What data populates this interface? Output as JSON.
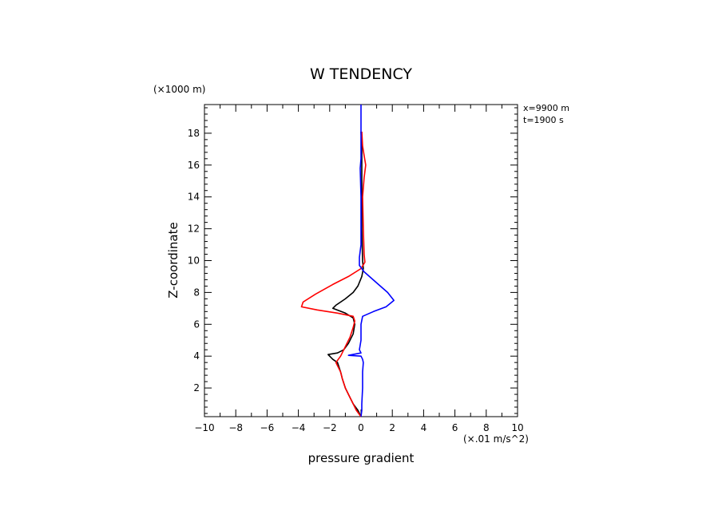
{
  "chart_data": {
    "type": "line",
    "title": "W TENDENCY",
    "xlabel": "pressure gradient",
    "ylabel": "Z-coordinate",
    "x_unit_label": "(×.01 m/s^2)",
    "y_unit_label": "(×1000 m)",
    "annotations": [
      "x=9900 m",
      "t=1900 s"
    ],
    "xlim": [
      -10,
      10
    ],
    "ylim": [
      0.2,
      19.8
    ],
    "x_ticks": [
      -10,
      -8,
      -6,
      -4,
      -2,
      0,
      2,
      4,
      6,
      8,
      10
    ],
    "x_tick_labels": [
      "−10",
      "−8",
      "−6",
      "−4",
      "−2",
      "0",
      "2",
      "4",
      "6",
      "8",
      "10"
    ],
    "y_ticks": [
      2,
      4,
      6,
      8,
      10,
      12,
      14,
      16,
      18
    ],
    "y_tick_labels": [
      "2",
      "4",
      "6",
      "8",
      "10",
      "12",
      "14",
      "16",
      "18"
    ],
    "grid": false,
    "series": [
      {
        "color": "#000000",
        "points": [
          [
            0,
            0.2
          ],
          [
            -0.2,
            0.6
          ],
          [
            -0.5,
            1.0
          ],
          [
            -0.8,
            1.6
          ],
          [
            -1.0,
            2.0
          ],
          [
            -1.2,
            2.6
          ],
          [
            -1.3,
            3.0
          ],
          [
            -1.5,
            3.6
          ],
          [
            -1.8,
            3.8
          ],
          [
            -2.1,
            4.1
          ],
          [
            -1.5,
            4.2
          ],
          [
            -1.1,
            4.4
          ],
          [
            -0.8,
            4.8
          ],
          [
            -0.5,
            5.4
          ],
          [
            -0.4,
            6.0
          ],
          [
            -0.5,
            6.4
          ],
          [
            -1.0,
            6.7
          ],
          [
            -1.8,
            7.0
          ],
          [
            -1.6,
            7.2
          ],
          [
            -1.0,
            7.6
          ],
          [
            -0.5,
            8.0
          ],
          [
            -0.2,
            8.4
          ],
          [
            0.05,
            9.0
          ],
          [
            0.15,
            9.5
          ],
          [
            0.1,
            10.0
          ],
          [
            0.05,
            12.0
          ],
          [
            0.05,
            14.0
          ],
          [
            0.05,
            16.0
          ],
          [
            0.05,
            16.6
          ],
          [
            0.05,
            17.2
          ],
          [
            0,
            18.1
          ]
        ]
      },
      {
        "color": "#ff0000",
        "points": [
          [
            0,
            0.2
          ],
          [
            -0.3,
            0.6
          ],
          [
            -0.5,
            1.0
          ],
          [
            -0.8,
            1.6
          ],
          [
            -1.0,
            2.0
          ],
          [
            -1.2,
            2.6
          ],
          [
            -1.3,
            3.0
          ],
          [
            -1.6,
            3.6
          ],
          [
            -1.3,
            4.0
          ],
          [
            -1.0,
            4.6
          ],
          [
            -0.7,
            5.2
          ],
          [
            -0.5,
            5.8
          ],
          [
            -0.4,
            6.2
          ],
          [
            -0.5,
            6.5
          ],
          [
            -1.5,
            6.7
          ],
          [
            -2.8,
            6.9
          ],
          [
            -3.8,
            7.1
          ],
          [
            -3.7,
            7.4
          ],
          [
            -2.9,
            7.9
          ],
          [
            -1.8,
            8.5
          ],
          [
            -0.8,
            9.0
          ],
          [
            0,
            9.5
          ],
          [
            0.25,
            9.9
          ],
          [
            0.2,
            10.4
          ],
          [
            0.15,
            12.0
          ],
          [
            0.1,
            14.0
          ],
          [
            0.2,
            15.2
          ],
          [
            0.3,
            16.0
          ],
          [
            0.2,
            16.6
          ],
          [
            0.1,
            17.2
          ],
          [
            0.05,
            18.1
          ]
        ]
      },
      {
        "color": "#0000ff",
        "points": [
          [
            0,
            0.2
          ],
          [
            0.05,
            0.6
          ],
          [
            0.05,
            1.0
          ],
          [
            0.1,
            2.0
          ],
          [
            0.1,
            3.0
          ],
          [
            0.15,
            3.6
          ],
          [
            0.1,
            3.8
          ],
          [
            0,
            4.0
          ],
          [
            -0.8,
            4.05
          ],
          [
            0,
            4.2
          ],
          [
            -0.1,
            4.4
          ],
          [
            0,
            5.0
          ],
          [
            0,
            6.0
          ],
          [
            0.1,
            6.5
          ],
          [
            0.8,
            6.8
          ],
          [
            1.6,
            7.1
          ],
          [
            2.1,
            7.5
          ],
          [
            1.7,
            8.0
          ],
          [
            1.0,
            8.6
          ],
          [
            0.2,
            9.3
          ],
          [
            -0.1,
            9.7
          ],
          [
            -0.1,
            10.2
          ],
          [
            0,
            11.0
          ],
          [
            0,
            14.0
          ],
          [
            -0.05,
            15.8
          ],
          [
            0,
            16.4
          ],
          [
            0,
            18.0
          ],
          [
            0,
            19.8
          ]
        ]
      }
    ]
  }
}
